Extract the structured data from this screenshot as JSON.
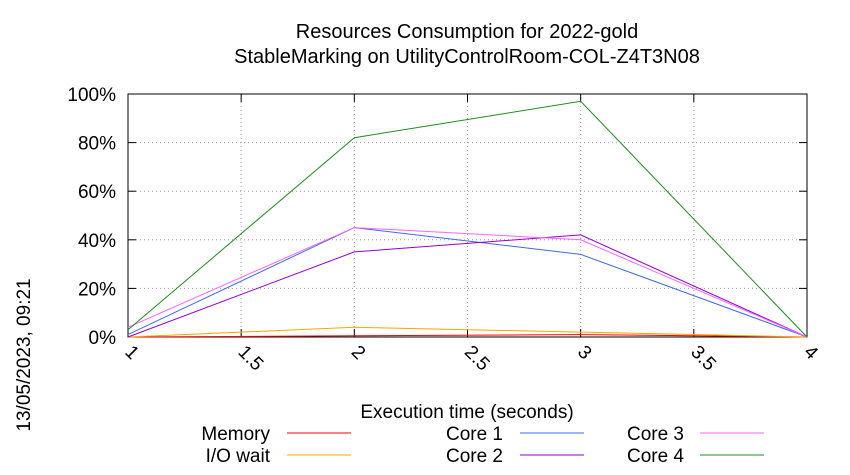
{
  "side_label": "13/05/2023, 09:21",
  "chart_data": {
    "type": "line",
    "title": "Resources Consumption for 2022-gold",
    "subtitle": "StableMarking on UtilityControlRoom-COL-Z4T3N08",
    "xlabel": "Execution time (seconds)",
    "ylabel": "",
    "xlim": [
      1,
      4
    ],
    "ylim": [
      0,
      100
    ],
    "x_ticks": [
      "1",
      "1.5",
      "2",
      "2.5",
      "3",
      "3.5",
      "4"
    ],
    "y_ticks": [
      "0%",
      "20%",
      "40%",
      "60%",
      "80%",
      "100%"
    ],
    "grid": true,
    "legend_position": "bottom",
    "series": [
      {
        "name": "Memory",
        "color": "#ff0000",
        "x": [
          1,
          2,
          3,
          4
        ],
        "y": [
          0,
          0.5,
          1,
          0
        ]
      },
      {
        "name": "I/O wait",
        "color": "#ffa500",
        "x": [
          1,
          2,
          3,
          4
        ],
        "y": [
          0,
          4,
          2,
          0
        ]
      },
      {
        "name": "Core 1",
        "color": "#4169e1",
        "x": [
          1,
          2,
          3,
          4
        ],
        "y": [
          1,
          45,
          34,
          0
        ]
      },
      {
        "name": "Core 2",
        "color": "#9400d3",
        "x": [
          1,
          2,
          3,
          4
        ],
        "y": [
          0,
          35,
          42,
          0
        ]
      },
      {
        "name": "Core 3",
        "color": "#ff66ff",
        "x": [
          1,
          2,
          3,
          4
        ],
        "y": [
          4,
          45,
          40,
          0
        ]
      },
      {
        "name": "Core 4",
        "color": "#228b22",
        "x": [
          1,
          2,
          3,
          4
        ],
        "y": [
          3,
          82,
          97,
          0
        ]
      }
    ]
  }
}
